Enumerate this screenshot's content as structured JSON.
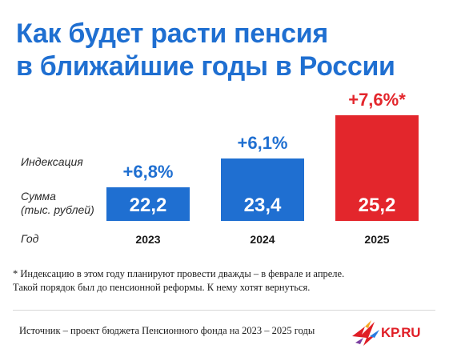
{
  "title_line1": "Как будет расти пенсия",
  "title_line2": "в ближайшие годы в России",
  "row_labels": {
    "indexation": "Индексация",
    "sum_line1": "Сумма",
    "sum_line2": "(тыс. рублей)",
    "year": "Год"
  },
  "chart_data": {
    "type": "bar",
    "categories": [
      "2023",
      "2024",
      "2025"
    ],
    "values": [
      22.2,
      23.4,
      25.2
    ],
    "value_labels": [
      "22,2",
      "23,4",
      "25,2"
    ],
    "indexation_labels": [
      "+6,8%",
      "+6,1%",
      "+7,6%*"
    ],
    "indexation_values": [
      6.8,
      6.1,
      7.6
    ],
    "colors": [
      "#1f6fd1",
      "#1f6fd1",
      "#e3262c"
    ],
    "title": "Как будет расти пенсия в ближайшие годы в России"
  },
  "footnote_line1": "* Индексацию в этом году планируют провести дважды – в феврале и апреле.",
  "footnote_line2": "Такой порядок был до пенсионной реформы. К нему хотят вернуться.",
  "source": "Источник – проект бюджета Пенсионного фонда на 2023 – 2025 годы",
  "logo_text": "KP.RU",
  "colors": {
    "blue": "#1f6fd1",
    "red": "#e3262c"
  }
}
